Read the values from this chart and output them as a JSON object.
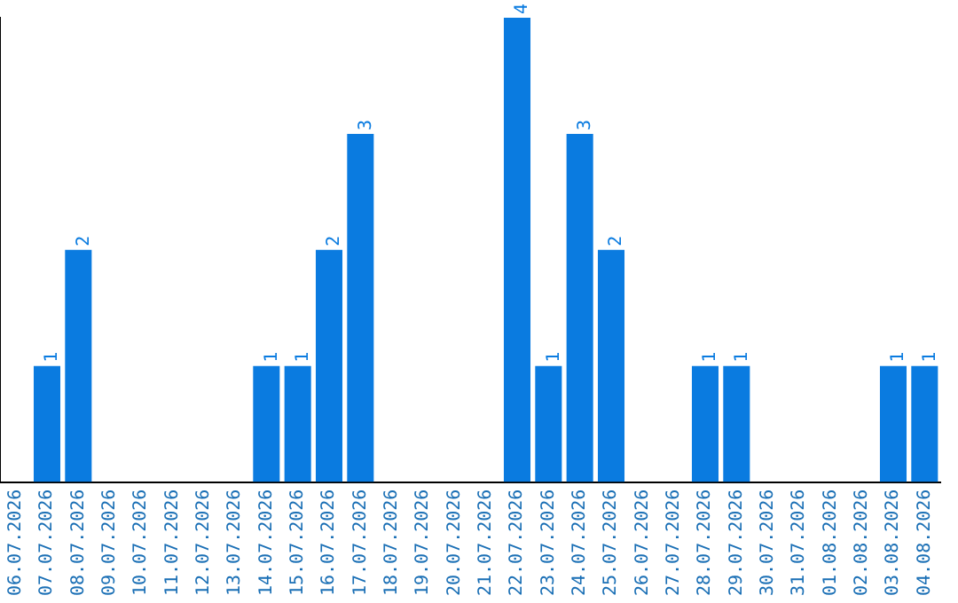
{
  "chart_data": {
    "type": "bar",
    "categories": [
      "06.07.2026",
      "07.07.2026",
      "08.07.2026",
      "09.07.2026",
      "10.07.2026",
      "11.07.2026",
      "12.07.2026",
      "13.07.2026",
      "14.07.2026",
      "15.07.2026",
      "16.07.2026",
      "17.07.2026",
      "18.07.2026",
      "19.07.2026",
      "20.07.2026",
      "21.07.2026",
      "22.07.2026",
      "23.07.2026",
      "24.07.2026",
      "25.07.2026",
      "26.07.2026",
      "27.07.2026",
      "28.07.2026",
      "29.07.2026",
      "30.07.2026",
      "31.07.2026",
      "01.08.2026",
      "02.08.2026",
      "03.08.2026",
      "04.08.2026"
    ],
    "values": [
      0,
      1,
      2,
      0,
      0,
      0,
      0,
      0,
      1,
      1,
      2,
      3,
      0,
      0,
      0,
      0,
      4,
      1,
      3,
      2,
      0,
      0,
      1,
      1,
      0,
      0,
      0,
      0,
      1,
      1
    ],
    "value_labels": [
      null,
      "1",
      "2",
      null,
      null,
      null,
      null,
      null,
      "1",
      "1",
      "2",
      "3",
      null,
      null,
      null,
      null,
      "4",
      "1",
      "3",
      "2",
      null,
      null,
      "1",
      "1",
      null,
      null,
      null,
      null,
      "1",
      "1"
    ],
    "color": "#0a7be0",
    "grid": false,
    "legend": false,
    "tick_labels": "x"
  }
}
